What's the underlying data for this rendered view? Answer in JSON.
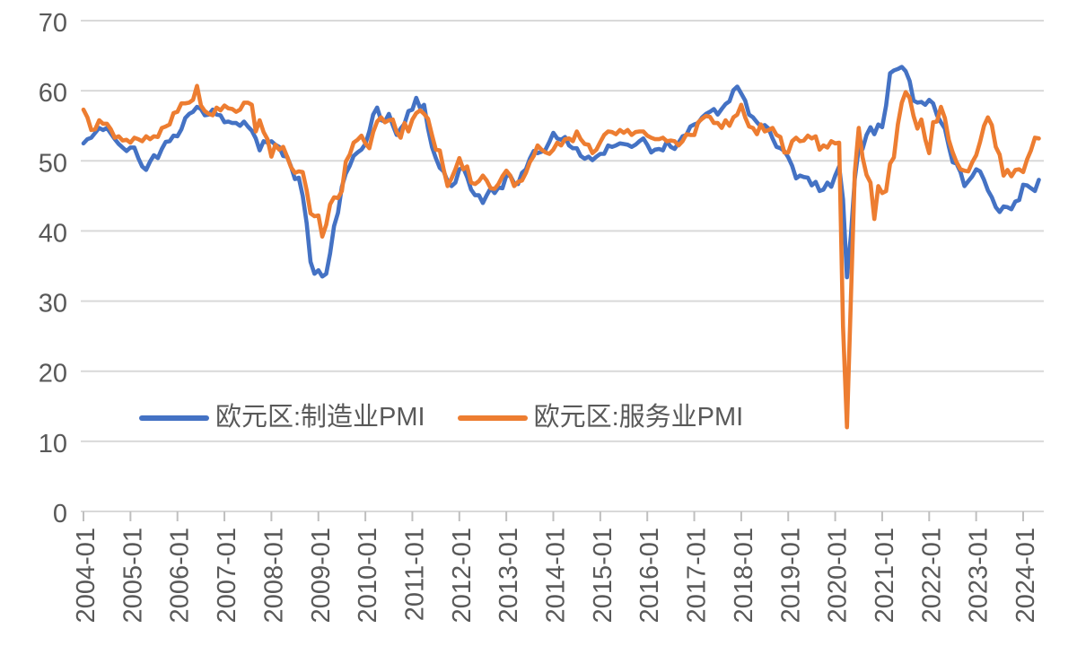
{
  "chart_data": {
    "type": "line",
    "title": "",
    "x_axis": {
      "unit": "month",
      "start": "2004-01",
      "end": "2024-05",
      "tick_labels": [
        "2004-01",
        "2005-01",
        "2006-01",
        "2007-01",
        "2008-01",
        "2009-01",
        "2010-01",
        "2011-01",
        "2012-01",
        "2013-01",
        "2014-01",
        "2015-01",
        "2016-01",
        "2017-01",
        "2018-01",
        "2019-01",
        "2020-01",
        "2021-01",
        "2022-01",
        "2023-01",
        "2024-01"
      ],
      "tick_label_rotation_deg": 90
    },
    "y_axis": {
      "min": 0,
      "max": 70,
      "ticks": [
        0,
        10,
        20,
        30,
        40,
        50,
        60,
        70
      ]
    },
    "grid": "horizontal-only",
    "legend": {
      "position": "inside-bottom-left"
    },
    "style": {
      "background": "#ffffff",
      "grid_color": "#d9d9d9",
      "axis_color": "#d9d9d9",
      "tick_color": "#bfbfbf",
      "text_color": "#595959",
      "line_width": 4.6
    },
    "series": [
      {
        "name": "欧元区:制造业PMI",
        "color": "#4472C4",
        "data_name": "manufacturing-pmi-line",
        "values": [
          52.5,
          53.1,
          53.3,
          54.0,
          54.7,
          54.4,
          54.7,
          53.9,
          53.1,
          52.4,
          51.9,
          51.4,
          51.9,
          51.9,
          50.4,
          49.2,
          48.7,
          49.9,
          50.8,
          50.4,
          51.7,
          52.7,
          52.8,
          53.6,
          53.5,
          54.5,
          56.1,
          56.7,
          57.0,
          57.7,
          57.4,
          56.5,
          56.6,
          57.3,
          56.6,
          56.5,
          55.5,
          55.6,
          55.4,
          55.4,
          55.0,
          55.6,
          54.9,
          54.3,
          53.2,
          51.5,
          52.8,
          52.6,
          52.8,
          52.3,
          52.0,
          50.7,
          50.6,
          49.2,
          47.4,
          47.6,
          45.0,
          41.1,
          35.6,
          33.9,
          34.4,
          33.5,
          33.9,
          36.8,
          40.7,
          42.6,
          46.3,
          48.2,
          49.3,
          50.7,
          51.2,
          51.6,
          52.4,
          54.2,
          56.6,
          57.6,
          55.8,
          55.6,
          56.7,
          55.1,
          53.7,
          54.6,
          55.3,
          57.1,
          57.3,
          59.0,
          57.5,
          58.0,
          54.6,
          52.0,
          50.4,
          49.0,
          48.5,
          47.1,
          46.4,
          46.9,
          48.8,
          49.0,
          47.7,
          45.9,
          45.1,
          45.1,
          44.0,
          45.1,
          46.1,
          45.4,
          46.2,
          46.1,
          47.9,
          47.9,
          46.8,
          46.7,
          48.3,
          48.8,
          50.3,
          51.4,
          51.1,
          51.3,
          51.6,
          52.7,
          54.0,
          53.2,
          53.0,
          53.4,
          52.2,
          51.8,
          51.8,
          50.7,
          50.3,
          50.6,
          50.1,
          50.6,
          51.0,
          51.0,
          52.2,
          52.0,
          52.2,
          52.5,
          52.4,
          52.3,
          52.0,
          52.3,
          52.8,
          53.2,
          52.3,
          51.2,
          51.6,
          51.7,
          51.5,
          52.8,
          52.0,
          51.7,
          52.6,
          53.5,
          53.7,
          54.9,
          55.2,
          55.4,
          56.2,
          56.7,
          57.0,
          57.4,
          56.6,
          57.4,
          58.1,
          58.5,
          60.1,
          60.6,
          59.6,
          58.6,
          56.6,
          56.2,
          55.5,
          54.9,
          55.1,
          54.6,
          53.2,
          52.0,
          51.8,
          51.4,
          50.5,
          49.3,
          47.5,
          47.9,
          47.7,
          47.6,
          46.5,
          47.0,
          45.7,
          45.9,
          46.9,
          46.3,
          47.9,
          49.2,
          44.5,
          33.4,
          39.4,
          47.4,
          51.8,
          51.7,
          53.7,
          54.8,
          53.8,
          55.2,
          54.8,
          57.9,
          62.5,
          62.9,
          63.1,
          63.4,
          62.8,
          61.4,
          58.6,
          58.3,
          58.4,
          58.0,
          58.7,
          58.2,
          56.5,
          55.5,
          54.6,
          52.1,
          49.8,
          49.6,
          48.4,
          46.4,
          47.1,
          47.8,
          48.8,
          48.5,
          47.3,
          45.8,
          44.8,
          43.4,
          42.7,
          43.5,
          43.4,
          43.1,
          44.2,
          44.4,
          46.6,
          46.5,
          46.1,
          45.7,
          47.3
        ]
      },
      {
        "name": "欧元区:服务业PMI",
        "color": "#ED7D31",
        "data_name": "services-pmi-line",
        "values": [
          57.3,
          56.2,
          54.4,
          54.5,
          55.8,
          55.3,
          55.3,
          54.5,
          53.3,
          53.5,
          52.9,
          53.0,
          52.6,
          53.3,
          53.1,
          52.8,
          53.5,
          53.1,
          53.5,
          53.4,
          54.7,
          54.9,
          55.2,
          56.8,
          57.0,
          58.2,
          58.2,
          58.3,
          58.7,
          60.7,
          57.9,
          57.1,
          56.7,
          56.5,
          57.6,
          57.2,
          57.9,
          57.5,
          57.4,
          57.0,
          57.3,
          58.3,
          58.3,
          58.0,
          54.2,
          55.8,
          54.1,
          53.1,
          50.6,
          52.3,
          51.6,
          52.0,
          50.6,
          49.1,
          48.3,
          48.5,
          48.4,
          45.8,
          42.5,
          42.1,
          42.2,
          39.2,
          40.9,
          43.8,
          44.8,
          44.7,
          45.7,
          49.9,
          50.9,
          52.6,
          53.0,
          53.6,
          52.5,
          51.8,
          54.1,
          55.6,
          56.2,
          55.5,
          55.8,
          55.9,
          54.1,
          53.3,
          55.4,
          54.2,
          55.9,
          56.8,
          57.2,
          56.7,
          56.0,
          53.7,
          51.6,
          51.5,
          48.8,
          46.4,
          47.5,
          48.8,
          50.4,
          48.8,
          49.2,
          46.9,
          46.7,
          47.1,
          47.9,
          47.2,
          46.1,
          46.0,
          46.7,
          47.8,
          48.6,
          47.9,
          46.4,
          47.0,
          47.2,
          48.3,
          49.8,
          50.7,
          52.2,
          51.6,
          51.2,
          51.0,
          51.6,
          52.6,
          52.2,
          53.1,
          53.2,
          52.8,
          54.2,
          53.1,
          52.4,
          52.3,
          51.1,
          51.6,
          52.7,
          53.7,
          54.2,
          54.1,
          53.8,
          54.4,
          54.0,
          54.4,
          53.7,
          54.1,
          54.2,
          54.2,
          53.6,
          53.3,
          53.1,
          53.1,
          53.3,
          52.8,
          52.9,
          52.8,
          52.2,
          52.8,
          53.8,
          53.7,
          53.7,
          55.5,
          56.0,
          56.4,
          56.3,
          55.4,
          55.4,
          54.7,
          55.8,
          55.0,
          56.2,
          56.6,
          58.0,
          56.2,
          54.9,
          54.7,
          53.8,
          55.2,
          54.2,
          54.4,
          54.7,
          53.7,
          53.4,
          51.2,
          51.2,
          52.8,
          53.3,
          52.8,
          52.9,
          53.6,
          53.2,
          53.5,
          51.6,
          52.2,
          51.9,
          52.8,
          52.5,
          52.6,
          26.4,
          12.0,
          30.5,
          48.3,
          54.7,
          50.5,
          48.0,
          46.9,
          41.7,
          46.4,
          45.4,
          45.7,
          49.6,
          50.5,
          55.2,
          58.3,
          59.8,
          59.0,
          56.4,
          54.6,
          55.9,
          53.1,
          51.1,
          55.5,
          55.6,
          57.7,
          56.1,
          53.0,
          51.2,
          49.8,
          48.8,
          48.6,
          48.5,
          49.8,
          50.8,
          52.7,
          55.0,
          56.2,
          55.1,
          52.0,
          50.9,
          47.9,
          48.7,
          47.8,
          48.7,
          48.8,
          48.4,
          50.2,
          51.5,
          53.3,
          53.2
        ]
      }
    ]
  }
}
